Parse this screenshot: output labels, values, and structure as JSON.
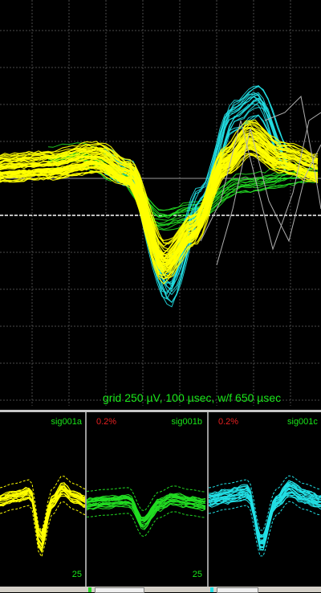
{
  "main_view": {
    "caption": "grid 250 µV, 100 µsec, w/f 650 µsec",
    "grid_color": "#4a4a4a"
  },
  "units": [
    {
      "name": "sig001a",
      "percent": "",
      "count": "25",
      "color": "#ffff00"
    },
    {
      "name": "sig001b",
      "percent": "0.2%",
      "count": "25",
      "color": "#22dd22"
    },
    {
      "name": "sig001c",
      "percent": "0.2%",
      "count": "",
      "color": "#22e0e6"
    }
  ],
  "colors": {
    "yellow": "#ffff00",
    "green": "#22dd22",
    "cyan": "#22e0e6",
    "caption_green": "#19e619",
    "percent_red": "#e62020",
    "unsorted": "#b0b0b0"
  }
}
